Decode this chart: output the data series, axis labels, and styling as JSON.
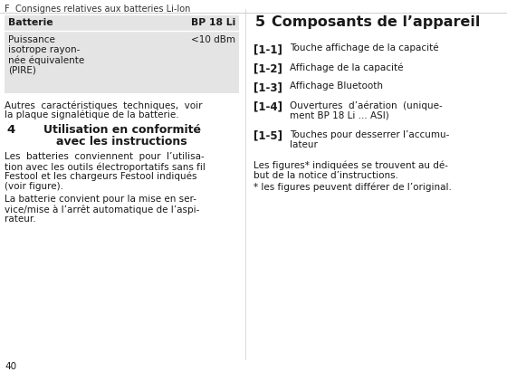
{
  "bg_color": "#ffffff",
  "header_text_f": "F",
  "header_text_rest": "     Consignes relatives aux batteries Li-Ion",
  "footer_number": "40",
  "table_bg": "#e4e4e4",
  "table_header_col1": "Batterie",
  "table_header_col2": "BP 18 Li",
  "table_data_lines": [
    "Puissance",
    "isotrope rayon-",
    "née équivalente",
    "(PIRE)"
  ],
  "table_data_col2": "<10 dBm",
  "section3_lines": [
    "Autres  caractéristiques  techniques,  voir",
    "la plaque signalétique de la batterie."
  ],
  "section4_num": "4",
  "section4_title_line1": "Utilisation en conformité",
  "section4_title_line2": "avec les instructions",
  "section4_para1_lines": [
    "Les  batteries  conviennent  pour  l’utilisa-",
    "tion avec les outils électroportatifs sans fil",
    "Festool et les chargeurs Festool indiqués",
    "(voir figure)."
  ],
  "section4_para2_lines": [
    "La batterie convient pour la mise en ser-",
    "vice/mise à l’arrêt automatique de l’aspi-",
    "rateur."
  ],
  "section5_num": "5",
  "section5_title": "Composants de l’appareil",
  "items": [
    {
      "label": "[1-1]",
      "lines": [
        "Touche affichage de la capacité"
      ]
    },
    {
      "label": "[1-2]",
      "lines": [
        "Affichage de la capacité"
      ]
    },
    {
      "label": "[1-3]",
      "lines": [
        "Affichage Bluetooth"
      ]
    },
    {
      "label": "[1-4]",
      "lines": [
        "Ouvertures  d’aération  (unique-",
        "ment BP 18 Li ... ASI)"
      ]
    },
    {
      "label": "[1-5]",
      "lines": [
        "Touches pour desserrer l’accumu-",
        "lateur"
      ]
    }
  ],
  "footer_right_lines1": [
    "Les figures* indiquées se trouvent au dé-",
    "but de la notice d’instructions."
  ],
  "footer_right_line2": "* les figures peuvent différer de l’original."
}
